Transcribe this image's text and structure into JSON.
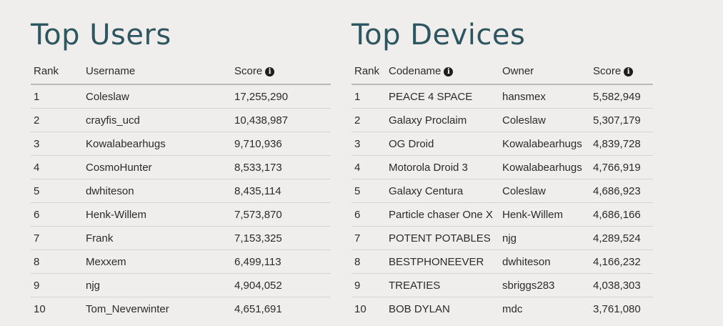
{
  "users": {
    "title": "Top Users",
    "headers": {
      "rank": "Rank",
      "username": "Username",
      "score": "Score"
    },
    "score_info_icon": "info-icon",
    "rows": [
      {
        "rank": "1",
        "username": "Coleslaw",
        "score": "17,255,290"
      },
      {
        "rank": "2",
        "username": "crayfis_ucd",
        "score": "10,438,987"
      },
      {
        "rank": "3",
        "username": "Kowalabearhugs",
        "score": "9,710,936"
      },
      {
        "rank": "4",
        "username": "CosmoHunter",
        "score": "8,533,173"
      },
      {
        "rank": "5",
        "username": "dwhiteson",
        "score": "8,435,114"
      },
      {
        "rank": "6",
        "username": "Henk-Willem",
        "score": "7,573,870"
      },
      {
        "rank": "7",
        "username": "Frank",
        "score": "7,153,325"
      },
      {
        "rank": "8",
        "username": "Mexxem",
        "score": "6,499,113"
      },
      {
        "rank": "9",
        "username": "njg",
        "score": "4,904,052"
      },
      {
        "rank": "10",
        "username": "Tom_Neverwinter",
        "score": "4,651,691"
      }
    ]
  },
  "devices": {
    "title": "Top Devices",
    "headers": {
      "rank": "Rank",
      "codename": "Codename",
      "owner": "Owner",
      "score": "Score"
    },
    "codename_info_icon": "info-icon",
    "score_info_icon": "info-icon",
    "rows": [
      {
        "rank": "1",
        "codename": "PEACE 4 SPACE",
        "owner": "hansmex",
        "score": "5,582,949"
      },
      {
        "rank": "2",
        "codename": "Galaxy Proclaim",
        "owner": "Coleslaw",
        "score": "5,307,179"
      },
      {
        "rank": "3",
        "codename": "OG Droid",
        "owner": "Kowalabearhugs",
        "score": "4,839,728"
      },
      {
        "rank": "4",
        "codename": "Motorola Droid 3",
        "owner": "Kowalabearhugs",
        "score": "4,766,919"
      },
      {
        "rank": "5",
        "codename": "Galaxy Centura",
        "owner": "Coleslaw",
        "score": "4,686,923"
      },
      {
        "rank": "6",
        "codename": "Particle chaser One X",
        "owner": "Henk-Willem",
        "score": "4,686,166"
      },
      {
        "rank": "7",
        "codename": "POTENT POTABLES",
        "owner": "njg",
        "score": "4,289,524"
      },
      {
        "rank": "8",
        "codename": "BESTPHONEEVER",
        "owner": "dwhiteson",
        "score": "4,166,232"
      },
      {
        "rank": "9",
        "codename": "TREATIES",
        "owner": "sbriggs283",
        "score": "4,038,303"
      },
      {
        "rank": "10",
        "codename": "BOB DYLAN",
        "owner": "mdc",
        "score": "3,761,080"
      }
    ]
  },
  "colors": {
    "title": "#2e5660",
    "background": "#efeeec",
    "text": "#2b2b2b"
  }
}
